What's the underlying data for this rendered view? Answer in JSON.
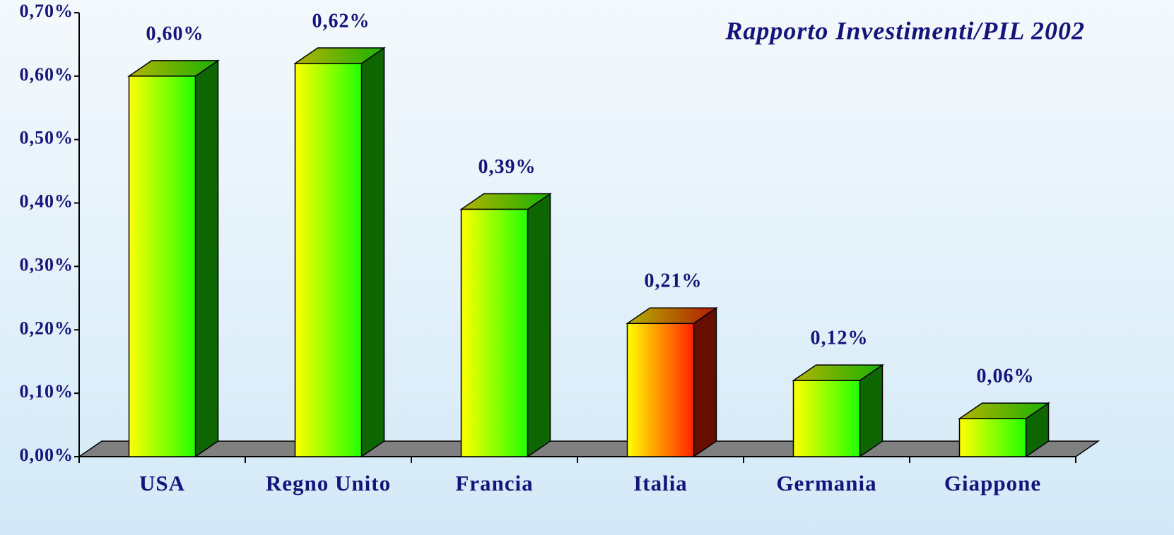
{
  "chart_data": {
    "type": "bar3d",
    "title": "Rapporto Investimenti/PIL 2002",
    "categories": [
      "USA",
      "Regno Unito",
      "Francia",
      "Italia",
      "Germania",
      "Giappone"
    ],
    "values": [
      0.6,
      0.62,
      0.39,
      0.21,
      0.12,
      0.06
    ],
    "value_labels": [
      "0,60%",
      "0,62%",
      "0,39%",
      "0,21%",
      "0,12%",
      "0,06%"
    ],
    "colors": [
      "#22ff00",
      "#22ff00",
      "#22ff00",
      "#ff2200",
      "#22ff00",
      "#22ff00"
    ],
    "ylim": [
      0,
      0.7
    ],
    "yticks": [
      {
        "value": 0,
        "label": "0,00%"
      },
      {
        "value": 0.1,
        "label": "0,10%"
      },
      {
        "value": 0.2,
        "label": "0,20%"
      },
      {
        "value": 0.3,
        "label": "0,30%"
      },
      {
        "value": 0.4,
        "label": "0,40%"
      },
      {
        "value": 0.5,
        "label": "0,50%"
      },
      {
        "value": 0.6,
        "label": "0,60%"
      },
      {
        "value": 0.7,
        "label": "0,70%"
      }
    ]
  }
}
